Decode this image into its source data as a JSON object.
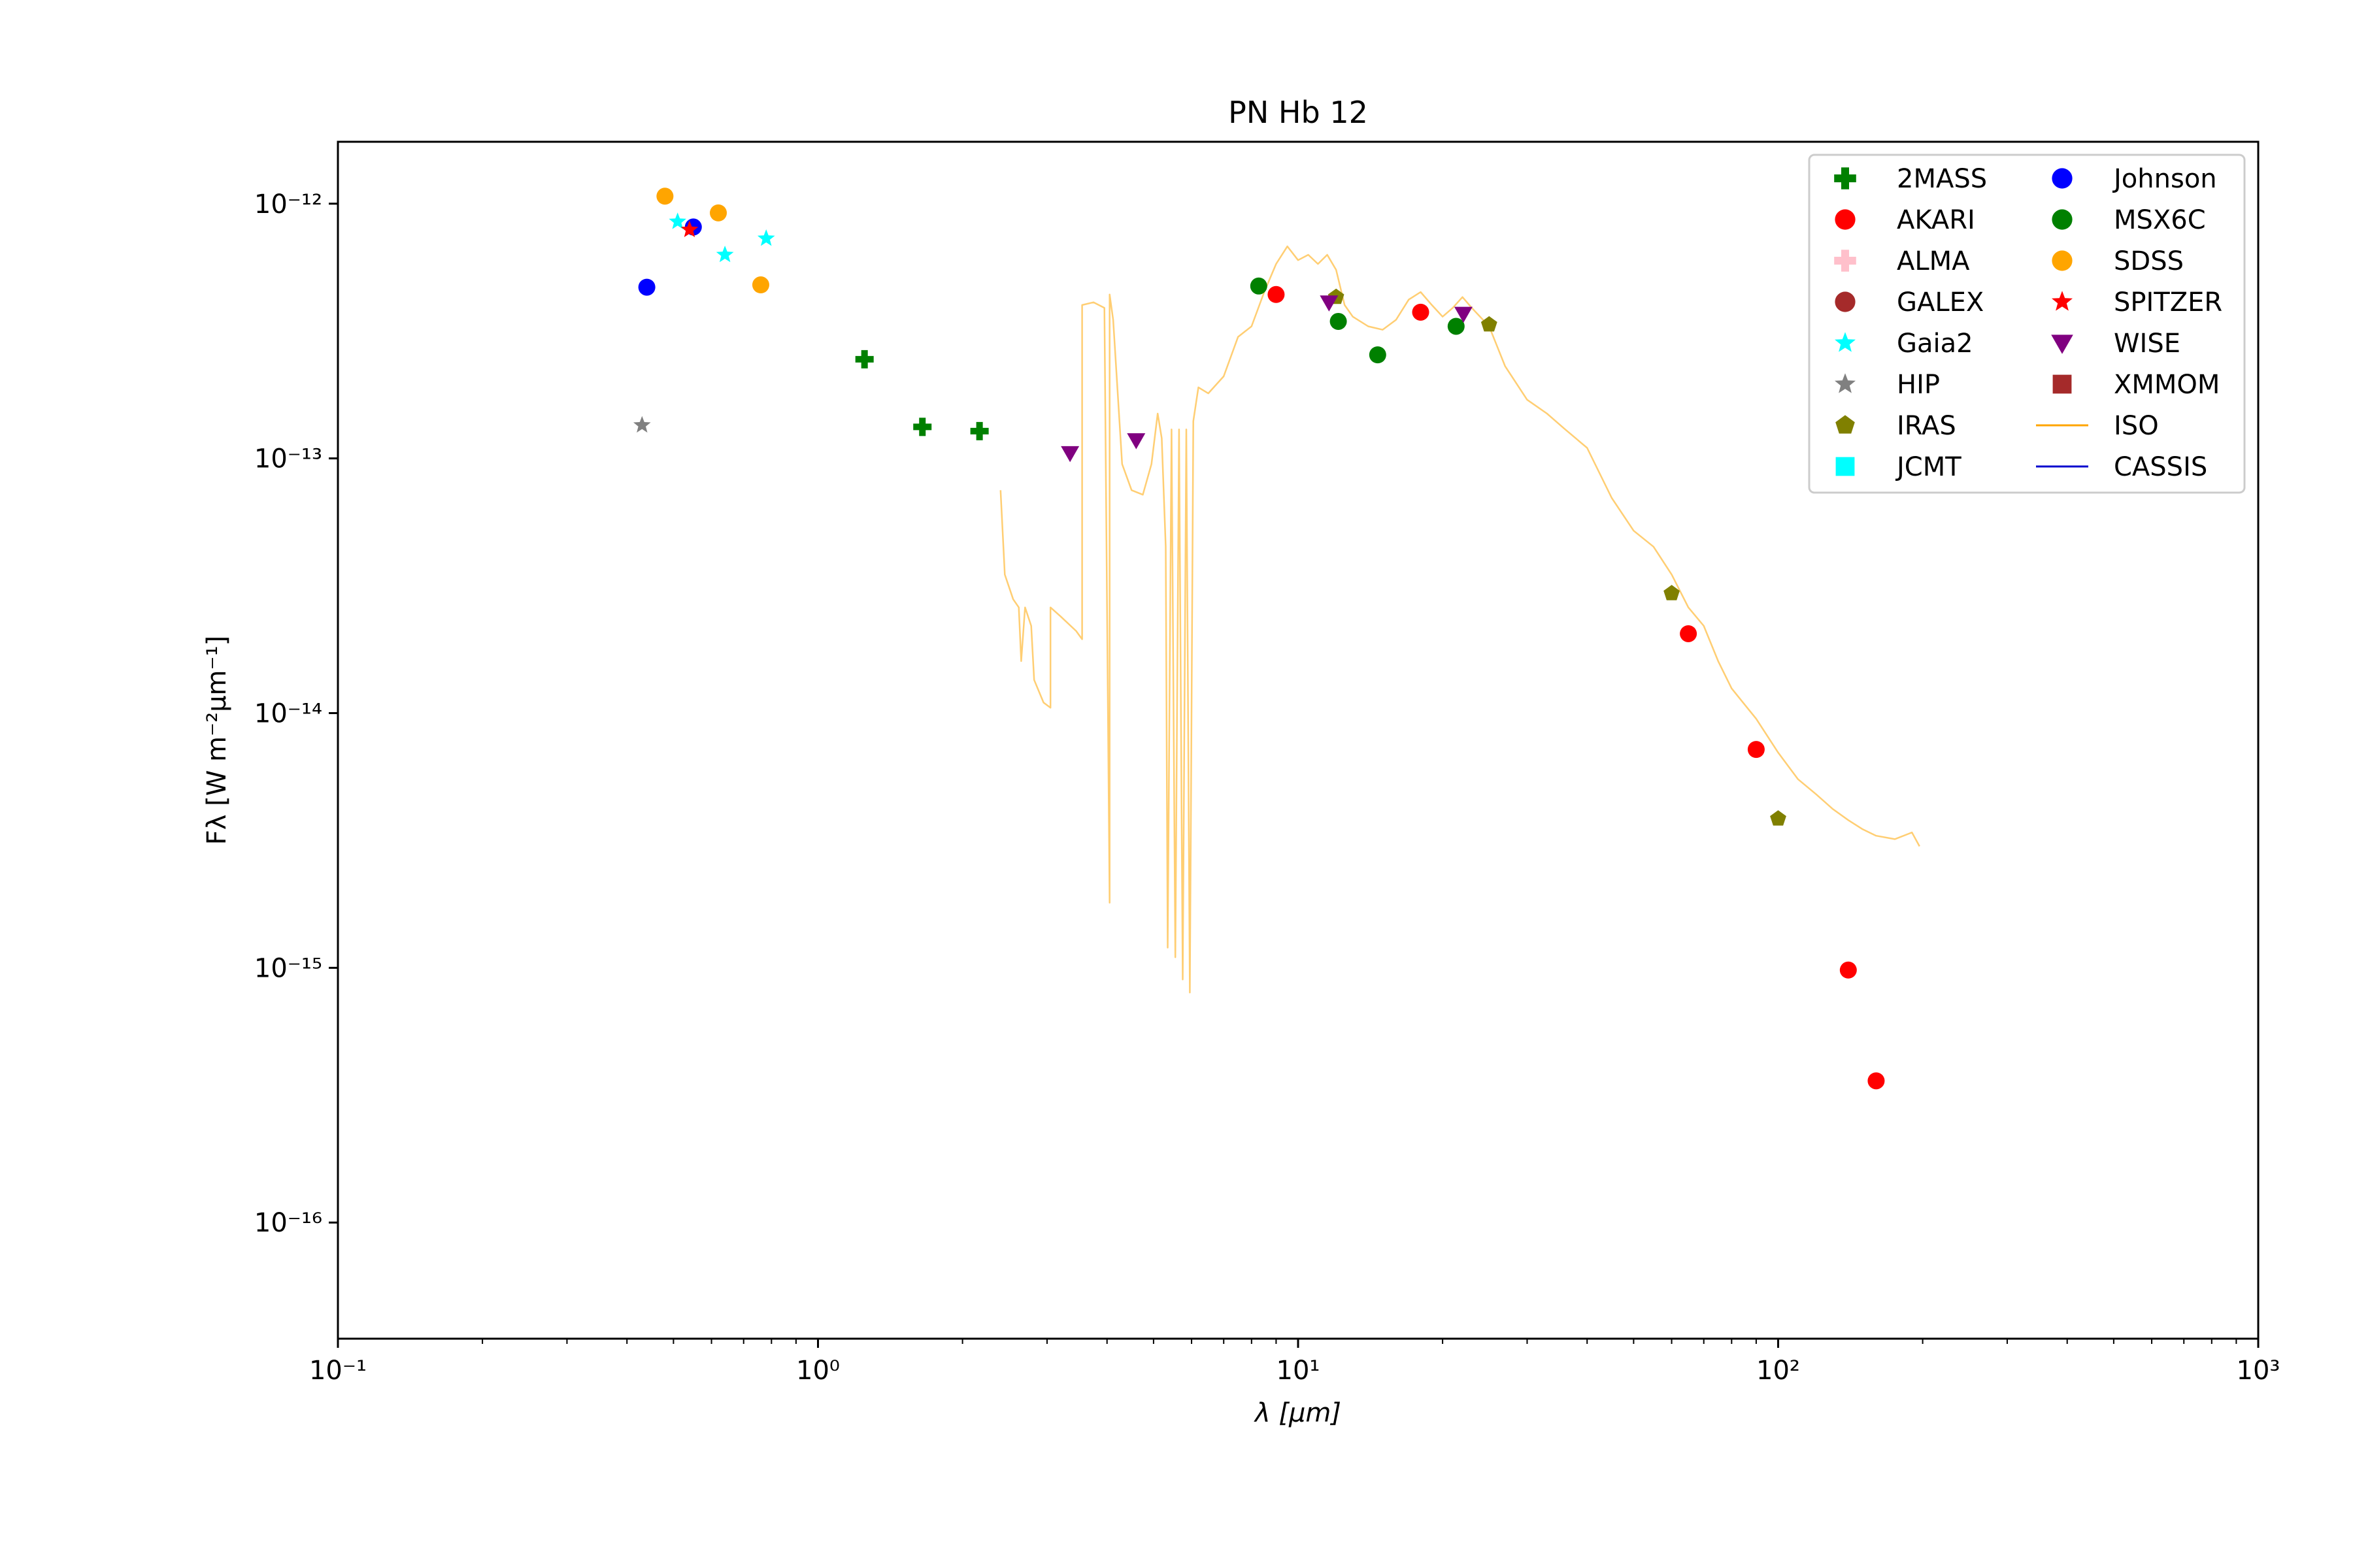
{
  "chart_data": {
    "type": "scatter",
    "title": "PN Hb 12",
    "xlabel": "λ [μm]",
    "ylabel": "Fλ [W m⁻²μm⁻¹]",
    "x_scale": "log",
    "y_scale": "log",
    "xlim": [
      0.1,
      1000
    ],
    "ylim": [
      3.5e-17,
      1.75e-12
    ],
    "x_ticks": [
      {
        "value": 0.1,
        "label": "10⁻¹"
      },
      {
        "value": 1,
        "label": "10⁰"
      },
      {
        "value": 10,
        "label": "10¹"
      },
      {
        "value": 100,
        "label": "10²"
      },
      {
        "value": 1000,
        "label": "10³"
      }
    ],
    "y_ticks": [
      {
        "value": 1e-16,
        "label": "10⁻¹⁶"
      },
      {
        "value": 1e-15,
        "label": "10⁻¹⁵"
      },
      {
        "value": 1e-14,
        "label": "10⁻¹⁴"
      },
      {
        "value": 1e-13,
        "label": "10⁻¹³"
      },
      {
        "value": 1e-12,
        "label": "10⁻¹²"
      }
    ],
    "grid": false,
    "legend_position": "top-right",
    "series": [
      {
        "name": "2MASS",
        "marker": "plus",
        "color": "#008000",
        "points": [
          [
            1.25,
            2.45e-13
          ],
          [
            1.65,
            1.33e-13
          ],
          [
            2.17,
            1.28e-13
          ]
        ]
      },
      {
        "name": "AKARI",
        "marker": "circle",
        "color": "#ff0000",
        "points": [
          [
            9,
            4.4e-13
          ],
          [
            18,
            3.75e-13
          ],
          [
            65,
            2.05e-14
          ],
          [
            90,
            7.2e-15
          ],
          [
            140,
            9.8e-16
          ],
          [
            160,
            3.6e-16
          ]
        ]
      },
      {
        "name": "ALMA",
        "marker": "plus",
        "color": "#ffc0cb",
        "points": []
      },
      {
        "name": "GALEX",
        "marker": "circle",
        "color": "#a52a2a",
        "points": []
      },
      {
        "name": "Gaia2",
        "marker": "star",
        "color": "#00ffff",
        "points": [
          [
            0.51,
            8.5e-13
          ],
          [
            0.64,
            6.3e-13
          ],
          [
            0.78,
            7.3e-13
          ]
        ]
      },
      {
        "name": "HIP",
        "marker": "star",
        "color": "#808080",
        "points": [
          [
            0.43,
            1.35e-13
          ]
        ]
      },
      {
        "name": "IRAS",
        "marker": "pentagon",
        "color": "#808000",
        "points": [
          [
            12,
            4.3e-13
          ],
          [
            25,
            3.35e-13
          ],
          [
            60,
            2.95e-14
          ],
          [
            100,
            3.85e-15
          ]
        ]
      },
      {
        "name": "JCMT",
        "marker": "square",
        "color": "#00ffff",
        "points": []
      },
      {
        "name": "Johnson",
        "marker": "circle",
        "color": "#0000ff",
        "points": [
          [
            0.44,
            4.7e-13
          ],
          [
            0.55,
            8.1e-13
          ]
        ]
      },
      {
        "name": "MSX6C",
        "marker": "circle",
        "color": "#008000",
        "points": [
          [
            8.28,
            4.75e-13
          ],
          [
            12.13,
            3.45e-13
          ],
          [
            14.65,
            2.55e-13
          ],
          [
            21.34,
            3.3e-13
          ]
        ]
      },
      {
        "name": "SDSS",
        "marker": "circle",
        "color": "#ffa500",
        "points": [
          [
            0.48,
            1.07e-12
          ],
          [
            0.62,
            9.2e-13
          ],
          [
            0.76,
            4.8e-13
          ]
        ]
      },
      {
        "name": "SPITZER",
        "marker": "star",
        "color": "#ff0000",
        "points": [
          [
            0.54,
            7.9e-13
          ]
        ]
      },
      {
        "name": "WISE",
        "marker": "triangle-down",
        "color": "#800080",
        "points": [
          [
            3.35,
            1.05e-13
          ],
          [
            4.6,
            1.18e-13
          ],
          [
            11.6,
            4.1e-13
          ],
          [
            22.1,
            3.7e-13
          ]
        ]
      },
      {
        "name": "XMMOM",
        "marker": "square",
        "color": "#a52a2a",
        "points": []
      },
      {
        "name": "ISO",
        "marker": "line",
        "color": "#ffa500",
        "points": [
          [
            2.4,
            7.5e-14
          ],
          [
            2.45,
            3.5e-14
          ],
          [
            2.55,
            2.8e-14
          ],
          [
            2.62,
            2.6e-14
          ],
          [
            2.65,
            1.6e-14
          ],
          [
            2.7,
            2.6e-14
          ],
          [
            2.78,
            2.2e-14
          ],
          [
            2.82,
            1.35e-14
          ],
          [
            2.95,
            1.1e-14
          ],
          [
            3.05,
            1.05e-14
          ],
          [
            3.05,
            2.6e-14
          ],
          [
            3.2,
            2.4e-14
          ],
          [
            3.45,
            2.1e-14
          ],
          [
            3.55,
            1.95e-14
          ],
          [
            3.55,
            4e-13
          ],
          [
            3.75,
            4.1e-13
          ],
          [
            3.95,
            3.9e-13
          ],
          [
            4.05,
            1.8e-15
          ],
          [
            4.05,
            4.4e-13
          ],
          [
            4.12,
            3.5e-13
          ],
          [
            4.3,
            9.5e-14
          ],
          [
            4.5,
            7.5e-14
          ],
          [
            4.75,
            7.2e-14
          ],
          [
            4.95,
            9.5e-14
          ],
          [
            5.1,
            1.5e-13
          ],
          [
            5.2,
            1.2e-13
          ],
          [
            5.3,
            4.5e-14
          ],
          [
            5.35,
            1.2e-15
          ],
          [
            5.45,
            1.3e-13
          ],
          [
            5.55,
            1.1e-15
          ],
          [
            5.65,
            1.3e-13
          ],
          [
            5.75,
            9e-16
          ],
          [
            5.85,
            1.3e-13
          ],
          [
            5.95,
            8e-16
          ],
          [
            6.05,
            1.4e-13
          ],
          [
            6.2,
            1.9e-13
          ],
          [
            6.5,
            1.8e-13
          ],
          [
            7.0,
            2.1e-13
          ],
          [
            7.5,
            3e-13
          ],
          [
            8.0,
            3.3e-13
          ],
          [
            8.5,
            4.5e-13
          ],
          [
            9.0,
            5.8e-13
          ],
          [
            9.5,
            6.8e-13
          ],
          [
            10,
            6e-13
          ],
          [
            10.5,
            6.3e-13
          ],
          [
            11,
            5.8e-13
          ],
          [
            11.5,
            6.3e-13
          ],
          [
            12,
            5.5e-13
          ],
          [
            12.5,
            4e-13
          ],
          [
            13,
            3.6e-13
          ],
          [
            14,
            3.3e-13
          ],
          [
            15,
            3.2e-13
          ],
          [
            16,
            3.5e-13
          ],
          [
            17,
            4.2e-13
          ],
          [
            18,
            4.5e-13
          ],
          [
            19,
            4e-13
          ],
          [
            20,
            3.6e-13
          ],
          [
            21,
            3.9e-13
          ],
          [
            22,
            4.3e-13
          ],
          [
            23,
            3.9e-13
          ],
          [
            25,
            3.3e-13
          ],
          [
            27,
            2.3e-13
          ],
          [
            30,
            1.7e-13
          ],
          [
            33,
            1.5e-13
          ],
          [
            36,
            1.3e-13
          ],
          [
            40,
            1.1e-13
          ],
          [
            45,
            7e-14
          ],
          [
            50,
            5.2e-14
          ],
          [
            55,
            4.5e-14
          ],
          [
            60,
            3.5e-14
          ],
          [
            65,
            2.6e-14
          ],
          [
            70,
            2.2e-14
          ],
          [
            75,
            1.6e-14
          ],
          [
            80,
            1.25e-14
          ],
          [
            90,
            9.5e-15
          ],
          [
            100,
            7e-15
          ],
          [
            110,
            5.5e-15
          ],
          [
            120,
            4.8e-15
          ],
          [
            130,
            4.2e-15
          ],
          [
            140,
            3.8e-15
          ],
          [
            150,
            3.5e-15
          ],
          [
            160,
            3.3e-15
          ],
          [
            175,
            3.2e-15
          ],
          [
            190,
            3.4e-15
          ],
          [
            197,
            3e-15
          ]
        ]
      },
      {
        "name": "CASSIS",
        "marker": "line",
        "color": "#0000cd",
        "points": []
      }
    ]
  }
}
